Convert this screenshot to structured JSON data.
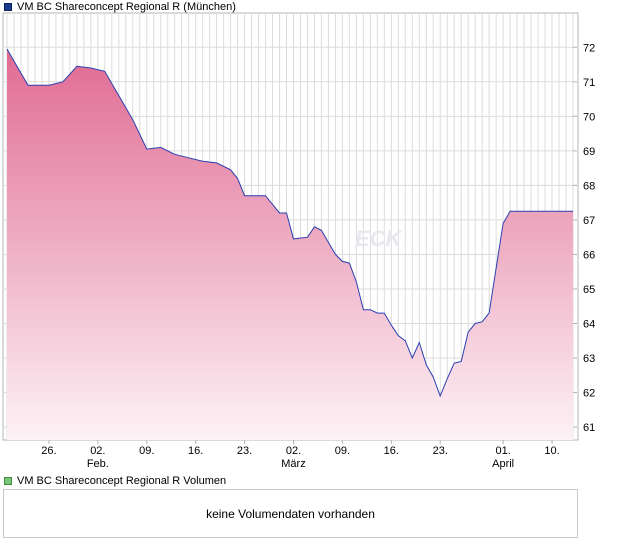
{
  "legend": {
    "price_label": "VM BC Shareconcept Regional R (München)",
    "volume_label": "VM BC Shareconcept Regional R Volumen"
  },
  "watermark": "ECK",
  "volume_panel": {
    "message": "keine Volumendaten vorhanden"
  },
  "colors": {
    "line": "#2a3fb0",
    "fill_top": "#e06a93",
    "fill_bottom": "#fdf2f6",
    "grid": "#dcdcdc",
    "axis": "#b4b4b4"
  },
  "chart_data": {
    "type": "area",
    "title": "VM BC Shareconcept Regional R (München)",
    "xlabel": "",
    "ylabel": "",
    "ylim": [
      60.8,
      72.5
    ],
    "xlim": [
      0,
      81
    ],
    "y_ticks": [
      "61",
      "62",
      "63",
      "64",
      "65",
      "66",
      "67",
      "68",
      "69",
      "70",
      "71",
      "72"
    ],
    "x_ticks": [
      {
        "x": 6,
        "label": "26.",
        "month": ""
      },
      {
        "x": 13,
        "label": "02.",
        "month": "Feb."
      },
      {
        "x": 20,
        "label": "09.",
        "month": ""
      },
      {
        "x": 27,
        "label": "16.",
        "month": ""
      },
      {
        "x": 34,
        "label": "23.",
        "month": ""
      },
      {
        "x": 41,
        "label": "02.",
        "month": "März"
      },
      {
        "x": 48,
        "label": "09.",
        "month": ""
      },
      {
        "x": 55,
        "label": "16.",
        "month": ""
      },
      {
        "x": 62,
        "label": "23.",
        "month": ""
      },
      {
        "x": 71,
        "label": "01.",
        "month": "April"
      },
      {
        "x": 78,
        "label": "10.",
        "month": ""
      }
    ],
    "series": [
      {
        "name": "VM BC Shareconcept Regional R",
        "x": [
          0,
          1,
          3,
          6,
          8,
          10,
          12,
          14,
          16,
          18,
          20,
          22,
          24,
          26,
          28,
          30,
          32,
          33,
          34,
          36,
          37,
          39,
          40,
          41,
          43,
          44,
          45,
          46,
          47,
          48,
          49,
          50,
          51,
          52,
          53,
          54,
          55,
          56,
          57,
          58,
          59,
          60,
          61,
          62,
          63,
          64,
          65,
          66,
          67,
          68,
          69,
          70,
          71,
          72,
          73,
          74,
          75,
          76,
          77,
          78,
          79,
          80,
          81
        ],
        "values": [
          71.95,
          71.6,
          70.9,
          70.9,
          71.0,
          71.45,
          71.4,
          71.3,
          70.6,
          69.9,
          69.05,
          69.1,
          68.9,
          68.8,
          68.7,
          68.65,
          68.45,
          68.2,
          67.7,
          67.7,
          67.7,
          67.2,
          67.2,
          66.45,
          66.5,
          66.8,
          66.7,
          66.35,
          66.0,
          65.8,
          65.75,
          65.2,
          64.4,
          64.4,
          64.3,
          64.3,
          63.95,
          63.65,
          63.5,
          63.0,
          63.45,
          62.8,
          62.45,
          61.9,
          62.4,
          62.85,
          62.9,
          63.75,
          64.0,
          64.05,
          64.3,
          65.6,
          66.9,
          67.25,
          67.25,
          67.25,
          67.25,
          67.25,
          67.25,
          67.25,
          67.25,
          67.25,
          67.25
        ]
      }
    ]
  }
}
